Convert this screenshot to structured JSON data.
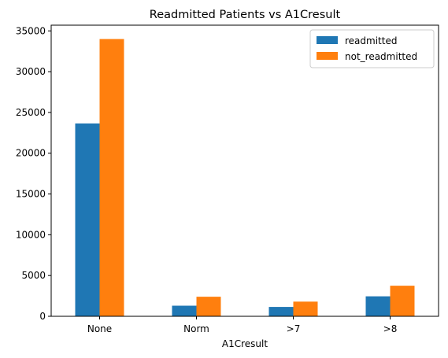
{
  "chart_data": {
    "type": "bar",
    "title": "Readmitted Patients vs A1Cresult",
    "xlabel": "A1Cresult",
    "ylabel": "",
    "categories": [
      "None",
      "Norm",
      ">7",
      ">8"
    ],
    "series": [
      {
        "name": "readmitted",
        "color": "#1f77b4",
        "values": [
          23650,
          1300,
          1150,
          2450
        ]
      },
      {
        "name": "not_readmitted",
        "color": "#ff7f0e",
        "values": [
          34000,
          2400,
          1800,
          3750
        ]
      }
    ],
    "ylim": [
      0,
      35700
    ],
    "yticks": [
      0,
      5000,
      10000,
      15000,
      20000,
      25000,
      30000,
      35000
    ],
    "grid": false,
    "legend_position": "top-right"
  }
}
